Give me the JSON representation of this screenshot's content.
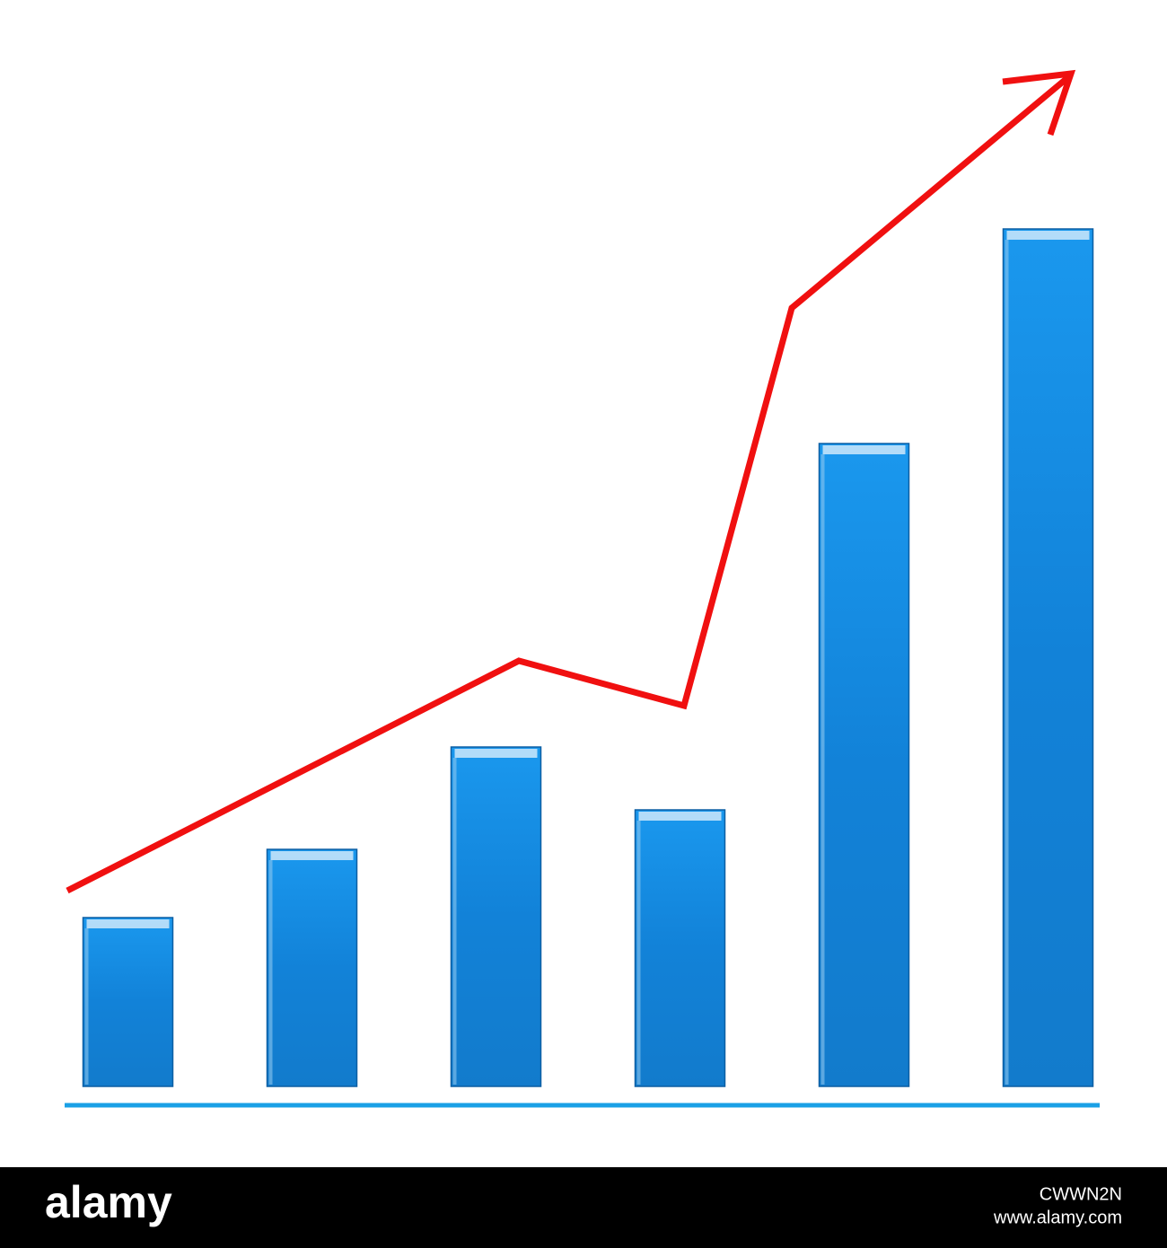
{
  "chart_data": {
    "type": "bar",
    "categories": [
      null,
      null,
      null,
      null,
      null,
      null
    ],
    "values": [
      188,
      264,
      378,
      308,
      716,
      955
    ],
    "color": "#1588dc",
    "ylim": [
      0,
      1000
    ]
  },
  "watermark": {
    "brand": "alamy",
    "id": "CWWN2N",
    "url": "www.alamy.com"
  }
}
